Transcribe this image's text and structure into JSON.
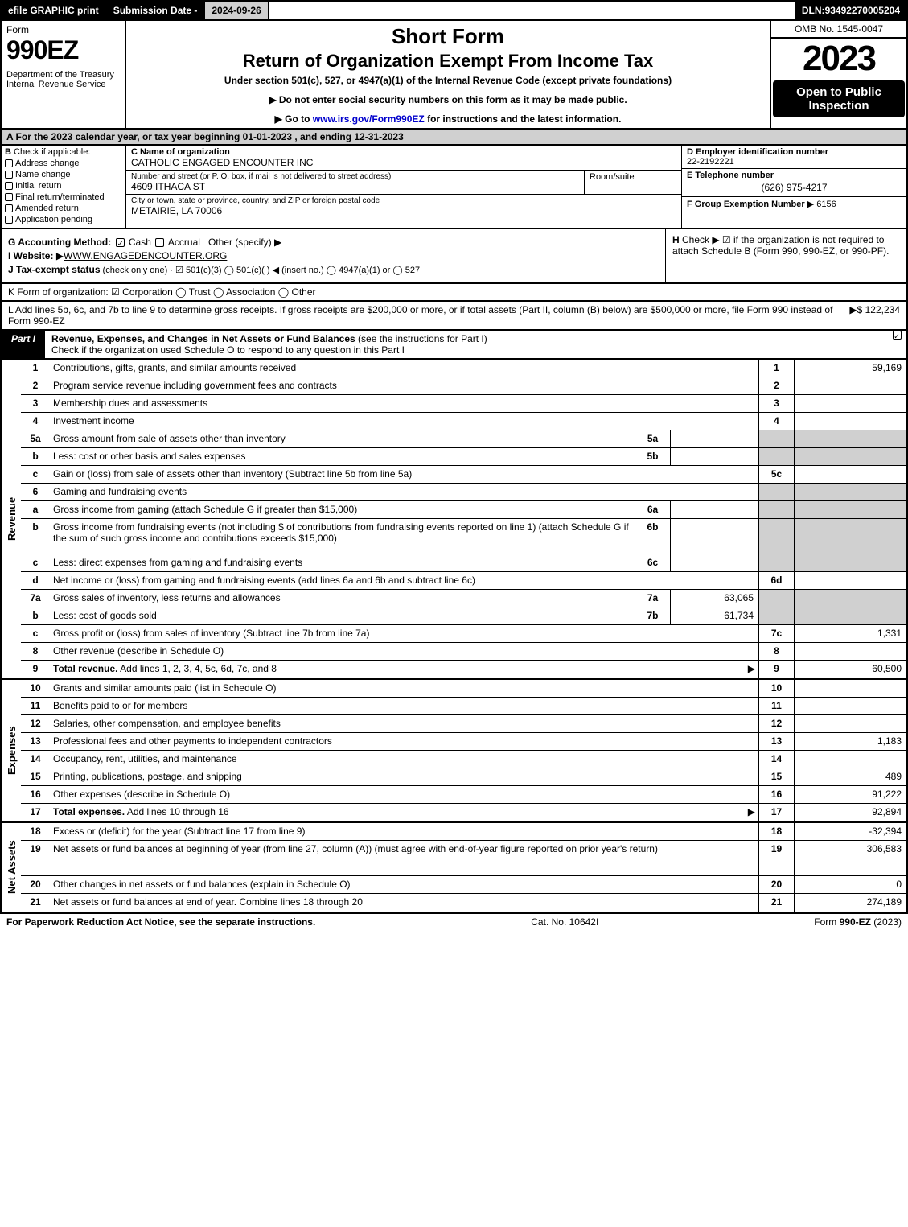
{
  "top_bar": {
    "efile": "efile GRAPHIC print",
    "sub_date_label": "Submission Date - ",
    "sub_date": "2024-09-26",
    "dln_label": "DLN: ",
    "dln": "93492270005204"
  },
  "header": {
    "form_label": "Form",
    "form_num": "990EZ",
    "dept": "Department of the Treasury\nInternal Revenue Service",
    "short_form": "Short Form",
    "return_title": "Return of Organization Exempt From Income Tax",
    "under_section": "Under section 501(c), 527, or 4947(a)(1) of the Internal Revenue Code (except private foundations)",
    "instr1": "Do not enter social security numbers on this form as it may be made public.",
    "instr2_pre": "Go to ",
    "instr2_link": "www.irs.gov/Form990EZ",
    "instr2_post": " for instructions and the latest information.",
    "omb": "OMB No. 1545-0047",
    "year": "2023",
    "open_box": "Open to Public Inspection"
  },
  "section_a": "A  For the 2023 calendar year, or tax year beginning 01-01-2023 , and ending 12-31-2023",
  "org": {
    "b_label": "B",
    "b_check": "Check if applicable:",
    "b_options": [
      "Address change",
      "Name change",
      "Initial return",
      "Final return/terminated",
      "Amended return",
      "Application pending"
    ],
    "c_label": "C Name of organization",
    "c_name": "CATHOLIC ENGAGED ENCOUNTER INC",
    "addr_label": "Number and street (or P. O. box, if mail is not delivered to street address)",
    "addr": "4609 ITHACA ST",
    "suite_label": "Room/suite",
    "city_label": "City or town, state or province, country, and ZIP or foreign postal code",
    "city": "METAIRIE, LA  70006",
    "d_label": "D Employer identification number",
    "d_val": "22-2192221",
    "e_label": "E Telephone number",
    "e_val": "(626) 975-4217",
    "f_label": "F Group Exemption Number",
    "f_val": "6156"
  },
  "g_block": {
    "g_label": "G Accounting Method:",
    "g_cash": "Cash",
    "g_accrual": "Accrual",
    "g_other": "Other (specify)",
    "i_label": "I Website:",
    "i_val": "WWW.ENGAGEDENCOUNTER.ORG",
    "j_label": "J Tax-exempt status",
    "j_text": " (check only one) ·  ☑ 501(c)(3)  ◯ 501(c)(  ) ◀ (insert no.)  ◯ 4947(a)(1) or  ◯ 527",
    "h_label": "H",
    "h_text": "Check ▶  ☑  if the organization is not required to attach Schedule B (Form 990, 990-EZ, or 990-PF)."
  },
  "k_line": "K Form of organization:  ☑ Corporation  ◯ Trust  ◯ Association  ◯ Other",
  "l_line": {
    "text": "L Add lines 5b, 6c, and 7b to line 9 to determine gross receipts. If gross receipts are $200,000 or more, or if total assets (Part II, column (B) below) are $500,000 or more, file Form 990 instead of Form 990-EZ",
    "amount": "$ 122,234"
  },
  "part1": {
    "tab": "Part I",
    "title_bold": "Revenue, Expenses, and Changes in Net Assets or Fund Balances",
    "title_rest": " (see the instructions for Part I)",
    "subtitle": "Check if the organization used Schedule O to respond to any question in this Part I"
  },
  "side_labels": {
    "revenue": "Revenue",
    "expenses": "Expenses",
    "netassets": "Net Assets"
  },
  "revenue_rows": [
    {
      "num": "1",
      "desc": "Contributions, gifts, grants, and similar amounts received",
      "line": "1",
      "amt": "59,169"
    },
    {
      "num": "2",
      "desc": "Program service revenue including government fees and contracts",
      "line": "2",
      "amt": ""
    },
    {
      "num": "3",
      "desc": "Membership dues and assessments",
      "line": "3",
      "amt": ""
    },
    {
      "num": "4",
      "desc": "Investment income",
      "line": "4",
      "amt": ""
    },
    {
      "num": "5a",
      "desc": "Gross amount from sale of assets other than inventory",
      "sub": "5a",
      "subval": "",
      "shaded": true
    },
    {
      "num": "b",
      "desc": "Less: cost or other basis and sales expenses",
      "sub": "5b",
      "subval": "",
      "shaded": true
    },
    {
      "num": "c",
      "desc": "Gain or (loss) from sale of assets other than inventory (Subtract line 5b from line 5a)",
      "line": "5c",
      "amt": ""
    },
    {
      "num": "6",
      "desc": "Gaming and fundraising events",
      "shaded": true,
      "full_shade": true
    },
    {
      "num": "a",
      "desc": "Gross income from gaming (attach Schedule G if greater than $15,000)",
      "sub": "6a",
      "subval": "",
      "shaded": true
    },
    {
      "num": "b",
      "desc": "Gross income from fundraising events (not including $                    of contributions from fundraising events reported on line 1) (attach Schedule G if the sum of such gross income and contributions exceeds $15,000)",
      "sub": "6b",
      "subval": "",
      "shaded": true,
      "tall": true
    },
    {
      "num": "c",
      "desc": "Less: direct expenses from gaming and fundraising events",
      "sub": "6c",
      "subval": "",
      "shaded": true
    },
    {
      "num": "d",
      "desc": "Net income or (loss) from gaming and fundraising events (add lines 6a and 6b and subtract line 6c)",
      "line": "6d",
      "amt": ""
    },
    {
      "num": "7a",
      "desc": "Gross sales of inventory, less returns and allowances",
      "sub": "7a",
      "subval": "63,065",
      "shaded": true
    },
    {
      "num": "b",
      "desc": "Less: cost of goods sold",
      "sub": "7b",
      "subval": "61,734",
      "shaded": true
    },
    {
      "num": "c",
      "desc": "Gross profit or (loss) from sales of inventory (Subtract line 7b from line 7a)",
      "line": "7c",
      "amt": "1,331"
    },
    {
      "num": "8",
      "desc": "Other revenue (describe in Schedule O)",
      "line": "8",
      "amt": ""
    },
    {
      "num": "9",
      "desc_bold": "Total revenue.",
      "desc": " Add lines 1, 2, 3, 4, 5c, 6d, 7c, and 8",
      "line": "9",
      "amt": "60,500",
      "arrow": true
    }
  ],
  "expense_rows": [
    {
      "num": "10",
      "desc": "Grants and similar amounts paid (list in Schedule O)",
      "line": "10",
      "amt": ""
    },
    {
      "num": "11",
      "desc": "Benefits paid to or for members",
      "line": "11",
      "amt": ""
    },
    {
      "num": "12",
      "desc": "Salaries, other compensation, and employee benefits",
      "line": "12",
      "amt": ""
    },
    {
      "num": "13",
      "desc": "Professional fees and other payments to independent contractors",
      "line": "13",
      "amt": "1,183"
    },
    {
      "num": "14",
      "desc": "Occupancy, rent, utilities, and maintenance",
      "line": "14",
      "amt": ""
    },
    {
      "num": "15",
      "desc": "Printing, publications, postage, and shipping",
      "line": "15",
      "amt": "489"
    },
    {
      "num": "16",
      "desc": "Other expenses (describe in Schedule O)",
      "line": "16",
      "amt": "91,222"
    },
    {
      "num": "17",
      "desc_bold": "Total expenses.",
      "desc": " Add lines 10 through 16",
      "line": "17",
      "amt": "92,894",
      "arrow": true
    }
  ],
  "netasset_rows": [
    {
      "num": "18",
      "desc": "Excess or (deficit) for the year (Subtract line 17 from line 9)",
      "line": "18",
      "amt": "-32,394"
    },
    {
      "num": "19",
      "desc": "Net assets or fund balances at beginning of year (from line 27, column (A)) (must agree with end-of-year figure reported on prior year's return)",
      "line": "19",
      "amt": "306,583",
      "tall": true
    },
    {
      "num": "20",
      "desc": "Other changes in net assets or fund balances (explain in Schedule O)",
      "line": "20",
      "amt": "0"
    },
    {
      "num": "21",
      "desc": "Net assets or fund balances at end of year. Combine lines 18 through 20",
      "line": "21",
      "amt": "274,189"
    }
  ],
  "footer": {
    "left": "For Paperwork Reduction Act Notice, see the separate instructions.",
    "mid": "Cat. No. 10642I",
    "right_pre": "Form ",
    "right_bold": "990-EZ",
    "right_post": " (2023)"
  },
  "colors": {
    "black": "#000000",
    "white": "#ffffff",
    "gray": "#d0d0d0",
    "link": "#0000cc"
  }
}
